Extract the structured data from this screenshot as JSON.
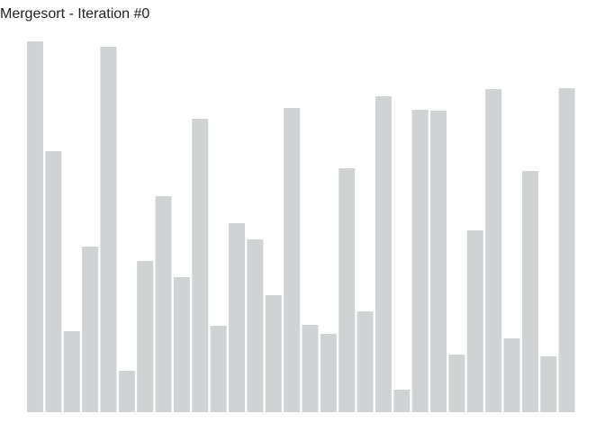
{
  "chart_data": {
    "type": "bar",
    "title": "Mergesort - Iteration #0",
    "values": [
      412,
      290,
      90,
      184,
      406,
      46,
      168,
      240,
      150,
      326,
      96,
      210,
      192,
      130,
      338,
      97,
      87,
      271,
      112,
      351,
      25,
      336,
      335,
      64,
      202,
      359,
      82,
      268,
      62,
      360
    ],
    "color": "#d0d3d4",
    "ylim": [
      0,
      412
    ]
  }
}
